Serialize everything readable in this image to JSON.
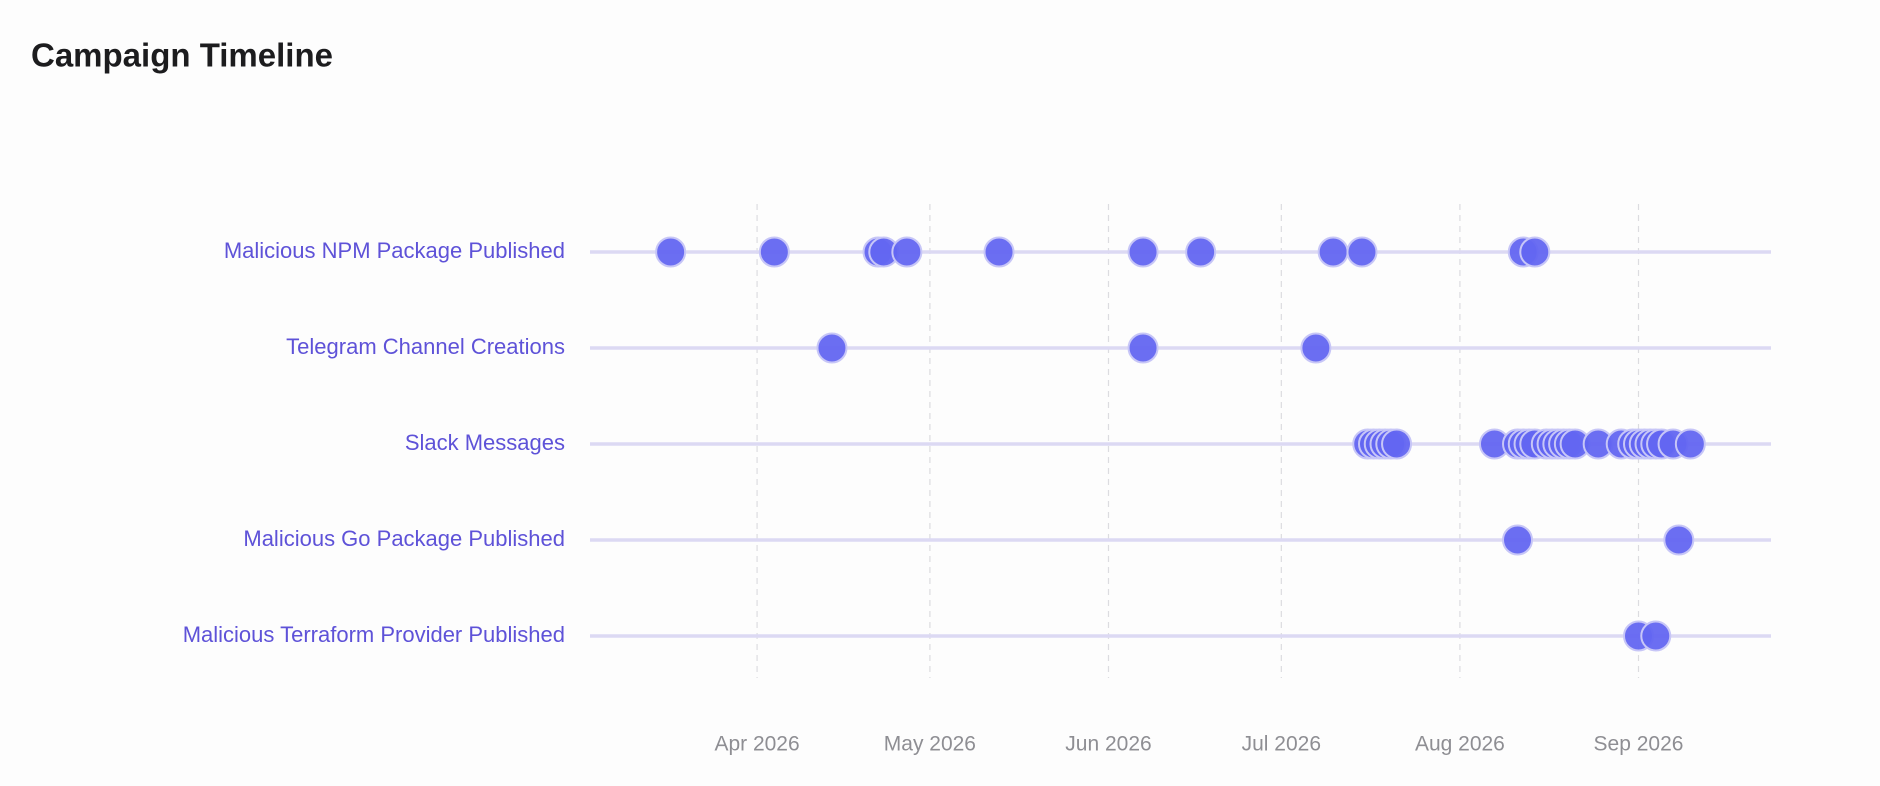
{
  "chart_data": {
    "type": "timeline",
    "title": "Campaign Timeline",
    "xlim": [
      "2026-03-03",
      "2026-09-24"
    ],
    "xticks": [
      {
        "value": "2026-04-01",
        "label": "Apr 2026"
      },
      {
        "value": "2026-05-01",
        "label": "May 2026"
      },
      {
        "value": "2026-06-01",
        "label": "Jun 2026"
      },
      {
        "value": "2026-07-01",
        "label": "Jul 2026"
      },
      {
        "value": "2026-08-01",
        "label": "Aug 2026"
      },
      {
        "value": "2026-09-01",
        "label": "Sep 2026"
      }
    ],
    "grid": true,
    "series": [
      {
        "name": "Malicious NPM Package Published",
        "color": "#6366f1",
        "x": [
          "2026-03-17",
          "2026-04-04",
          "2026-04-22",
          "2026-04-23",
          "2026-04-27",
          "2026-05-13",
          "2026-06-07",
          "2026-06-17",
          "2026-07-10",
          "2026-07-15",
          "2026-08-12",
          "2026-08-14"
        ]
      },
      {
        "name": "Telegram Channel Creations",
        "color": "#6366f1",
        "x": [
          "2026-04-14",
          "2026-06-07",
          "2026-07-07"
        ]
      },
      {
        "name": "Slack Messages",
        "color": "#6366f1",
        "x": [
          "2026-07-16",
          "2026-07-17",
          "2026-07-18",
          "2026-07-19",
          "2026-07-20",
          "2026-07-21",
          "2026-08-07",
          "2026-08-11",
          "2026-08-12",
          "2026-08-13",
          "2026-08-14",
          "2026-08-16",
          "2026-08-17",
          "2026-08-18",
          "2026-08-19",
          "2026-08-20",
          "2026-08-21",
          "2026-08-25",
          "2026-08-29",
          "2026-08-31",
          "2026-09-01",
          "2026-09-02",
          "2026-09-03",
          "2026-09-04",
          "2026-09-05",
          "2026-09-07",
          "2026-09-10"
        ]
      },
      {
        "name": "Malicious Go Package Published",
        "color": "#6366f1",
        "x": [
          "2026-08-11",
          "2026-09-08"
        ]
      },
      {
        "name": "Malicious Terraform Provider Published",
        "color": "#6366f1",
        "x": [
          "2026-09-01",
          "2026-09-04"
        ]
      }
    ]
  }
}
